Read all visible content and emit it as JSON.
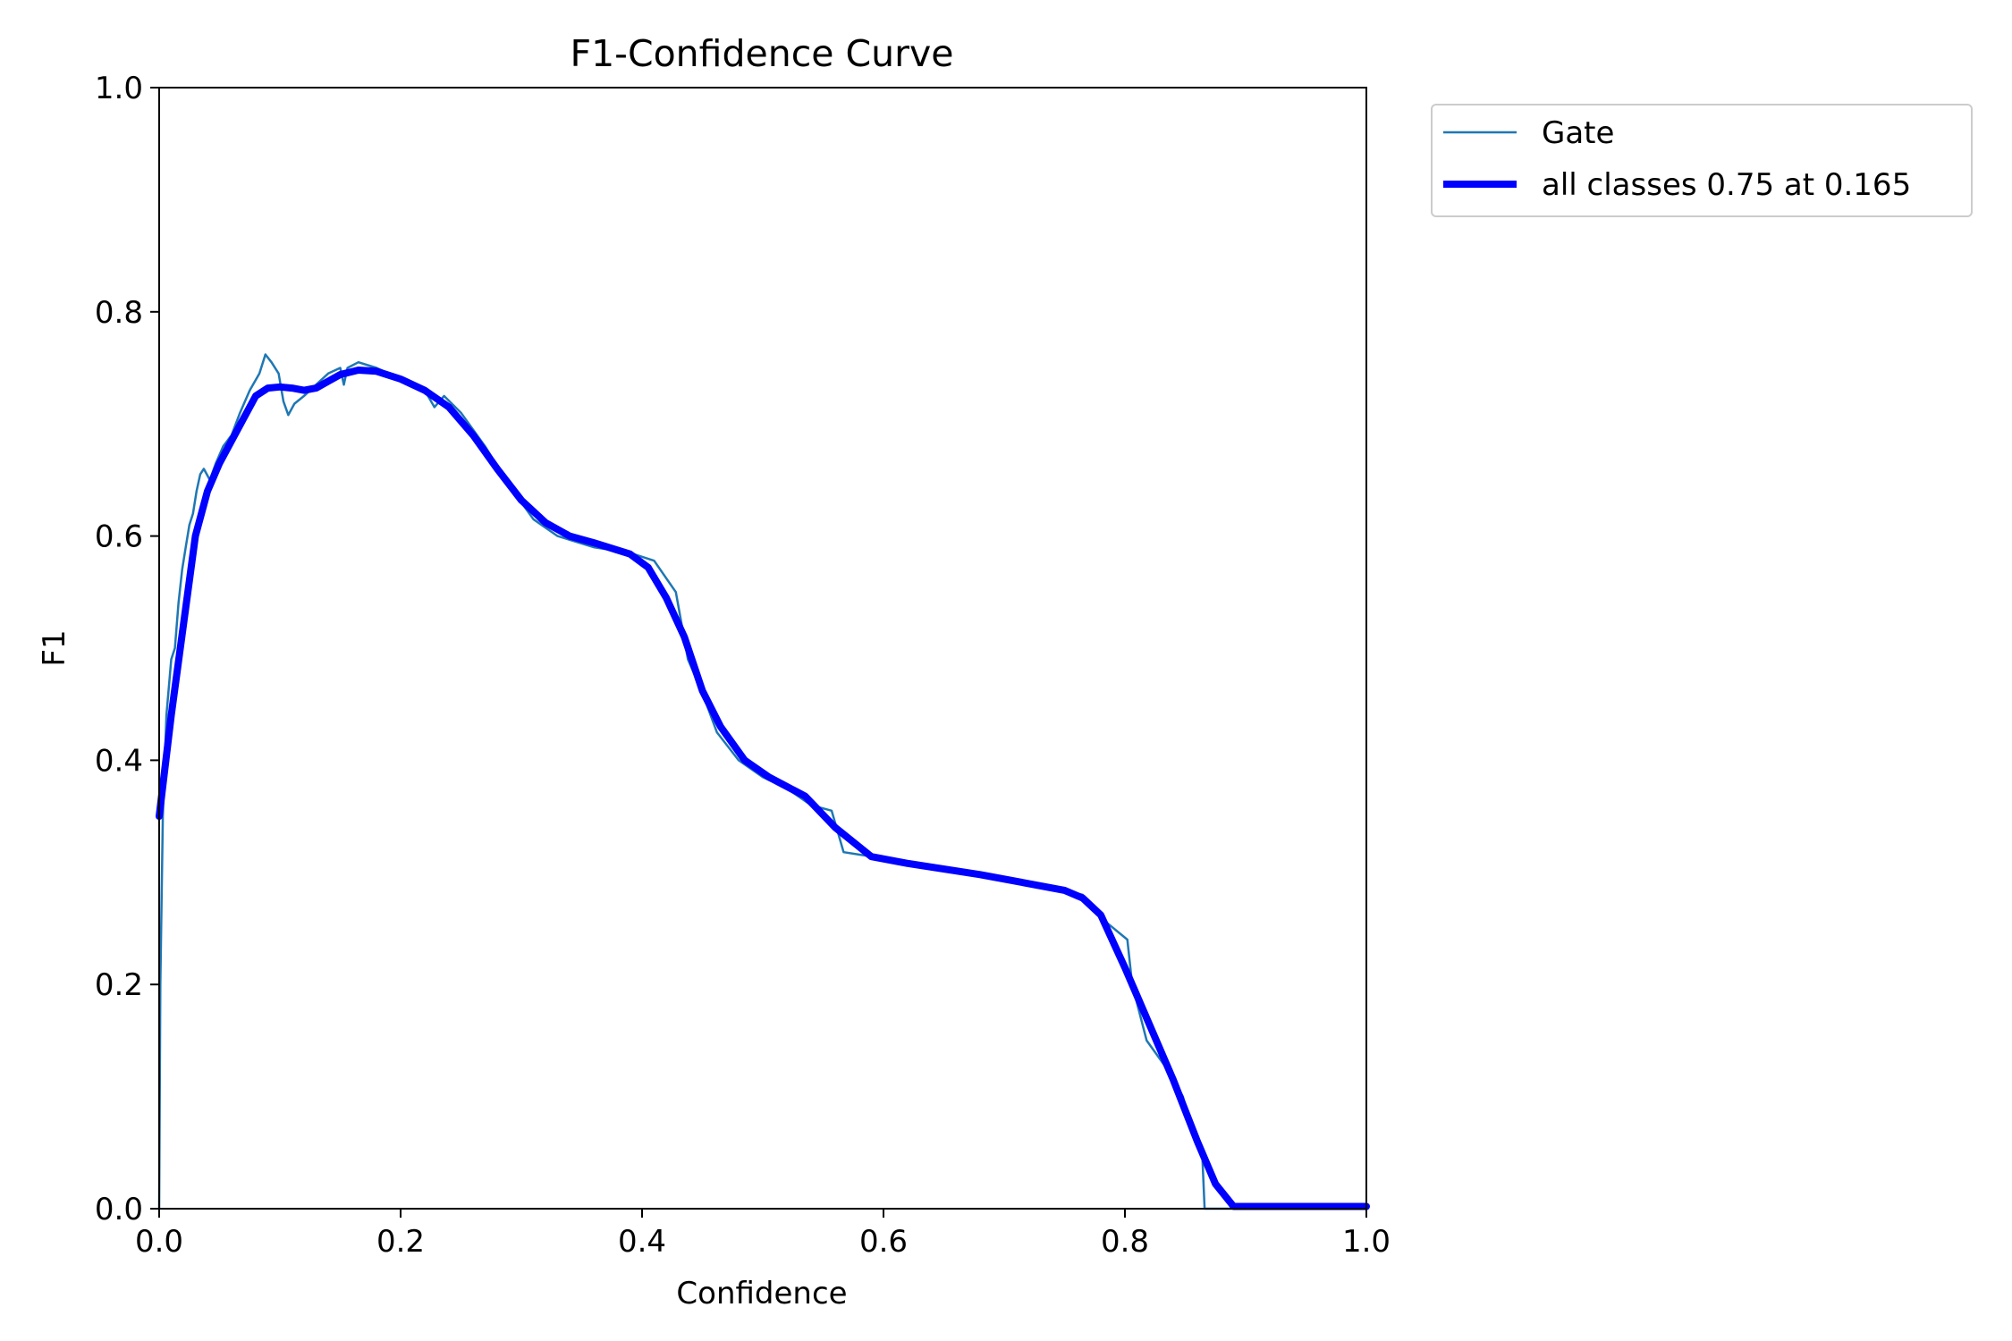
{
  "chart_data": {
    "type": "line",
    "title": "F1-Confidence Curve",
    "xlabel": "Confidence",
    "ylabel": "F1",
    "xlim": [
      0.0,
      1.0
    ],
    "ylim": [
      0.0,
      1.0
    ],
    "x_ticks": [
      "0.0",
      "0.2",
      "0.4",
      "0.6",
      "0.8",
      "1.0"
    ],
    "y_ticks": [
      "0.0",
      "0.2",
      "0.4",
      "0.6",
      "0.8",
      "1.0"
    ],
    "grid": false,
    "legend_position": "outside-top-right",
    "series": [
      {
        "name": "Gate",
        "color": "#1f77b4",
        "style": "thin",
        "points": [
          [
            0.0,
            0.0
          ],
          [
            0.001,
            0.2
          ],
          [
            0.003,
            0.35
          ],
          [
            0.006,
            0.44
          ],
          [
            0.01,
            0.49
          ],
          [
            0.013,
            0.5
          ],
          [
            0.016,
            0.54
          ],
          [
            0.019,
            0.57
          ],
          [
            0.022,
            0.59
          ],
          [
            0.025,
            0.61
          ],
          [
            0.028,
            0.62
          ],
          [
            0.031,
            0.64
          ],
          [
            0.034,
            0.655
          ],
          [
            0.037,
            0.66
          ],
          [
            0.042,
            0.65
          ],
          [
            0.047,
            0.665
          ],
          [
            0.053,
            0.68
          ],
          [
            0.06,
            0.69
          ],
          [
            0.067,
            0.71
          ],
          [
            0.075,
            0.73
          ],
          [
            0.083,
            0.745
          ],
          [
            0.088,
            0.762
          ],
          [
            0.093,
            0.755
          ],
          [
            0.099,
            0.745
          ],
          [
            0.103,
            0.72
          ],
          [
            0.107,
            0.708
          ],
          [
            0.112,
            0.718
          ],
          [
            0.12,
            0.725
          ],
          [
            0.13,
            0.735
          ],
          [
            0.14,
            0.745
          ],
          [
            0.15,
            0.75
          ],
          [
            0.153,
            0.735
          ],
          [
            0.156,
            0.75
          ],
          [
            0.165,
            0.755
          ],
          [
            0.18,
            0.75
          ],
          [
            0.2,
            0.74
          ],
          [
            0.22,
            0.73
          ],
          [
            0.228,
            0.715
          ],
          [
            0.236,
            0.725
          ],
          [
            0.25,
            0.71
          ],
          [
            0.27,
            0.68
          ],
          [
            0.29,
            0.645
          ],
          [
            0.31,
            0.615
          ],
          [
            0.33,
            0.6
          ],
          [
            0.36,
            0.59
          ],
          [
            0.39,
            0.585
          ],
          [
            0.41,
            0.578
          ],
          [
            0.428,
            0.55
          ],
          [
            0.438,
            0.49
          ],
          [
            0.45,
            0.46
          ],
          [
            0.462,
            0.425
          ],
          [
            0.48,
            0.4
          ],
          [
            0.5,
            0.385
          ],
          [
            0.52,
            0.375
          ],
          [
            0.54,
            0.36
          ],
          [
            0.557,
            0.355
          ],
          [
            0.567,
            0.318
          ],
          [
            0.585,
            0.315
          ],
          [
            0.62,
            0.31
          ],
          [
            0.68,
            0.3
          ],
          [
            0.74,
            0.285
          ],
          [
            0.765,
            0.28
          ],
          [
            0.785,
            0.255
          ],
          [
            0.802,
            0.24
          ],
          [
            0.806,
            0.2
          ],
          [
            0.818,
            0.15
          ],
          [
            0.838,
            0.12
          ],
          [
            0.848,
            0.1
          ],
          [
            0.858,
            0.06
          ],
          [
            0.864,
            0.05
          ],
          [
            0.866,
            0.0
          ],
          [
            0.9,
            0.0
          ],
          [
            1.0,
            0.0
          ]
        ]
      },
      {
        "name": "all classes 0.75 at 0.165",
        "color": "#0000ff",
        "style": "thick",
        "points": [
          [
            0.0,
            0.35
          ],
          [
            0.01,
            0.44
          ],
          [
            0.02,
            0.52
          ],
          [
            0.03,
            0.6
          ],
          [
            0.04,
            0.64
          ],
          [
            0.05,
            0.665
          ],
          [
            0.06,
            0.685
          ],
          [
            0.07,
            0.705
          ],
          [
            0.08,
            0.725
          ],
          [
            0.09,
            0.732
          ],
          [
            0.1,
            0.733
          ],
          [
            0.11,
            0.732
          ],
          [
            0.12,
            0.73
          ],
          [
            0.13,
            0.732
          ],
          [
            0.14,
            0.738
          ],
          [
            0.15,
            0.744
          ],
          [
            0.165,
            0.748
          ],
          [
            0.18,
            0.747
          ],
          [
            0.2,
            0.74
          ],
          [
            0.22,
            0.73
          ],
          [
            0.24,
            0.715
          ],
          [
            0.26,
            0.69
          ],
          [
            0.28,
            0.66
          ],
          [
            0.3,
            0.632
          ],
          [
            0.32,
            0.612
          ],
          [
            0.34,
            0.6
          ],
          [
            0.36,
            0.594
          ],
          [
            0.39,
            0.584
          ],
          [
            0.405,
            0.572
          ],
          [
            0.42,
            0.545
          ],
          [
            0.435,
            0.51
          ],
          [
            0.45,
            0.462
          ],
          [
            0.465,
            0.43
          ],
          [
            0.485,
            0.4
          ],
          [
            0.505,
            0.385
          ],
          [
            0.535,
            0.368
          ],
          [
            0.56,
            0.34
          ],
          [
            0.59,
            0.314
          ],
          [
            0.62,
            0.308
          ],
          [
            0.68,
            0.298
          ],
          [
            0.75,
            0.284
          ],
          [
            0.765,
            0.277
          ],
          [
            0.78,
            0.262
          ],
          [
            0.8,
            0.215
          ],
          [
            0.82,
            0.165
          ],
          [
            0.84,
            0.115
          ],
          [
            0.86,
            0.06
          ],
          [
            0.875,
            0.022
          ],
          [
            0.89,
            0.002
          ],
          [
            0.92,
            0.002
          ],
          [
            1.0,
            0.002
          ]
        ]
      }
    ]
  }
}
